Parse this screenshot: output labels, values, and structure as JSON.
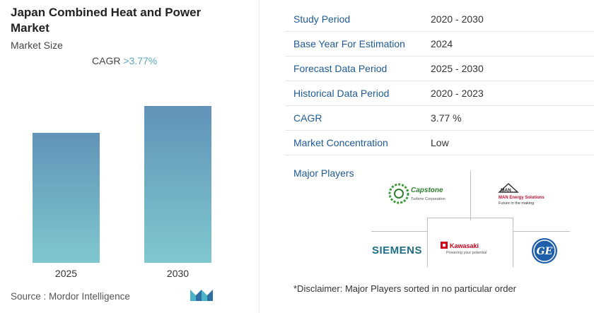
{
  "report": {
    "title": "Japan Combined Heat and Power Market",
    "subtitle": "Market Size",
    "cagr_label": "CAGR",
    "cagr_value": ">3.77%",
    "source": "Source :  Mordor Intelligence"
  },
  "chart_data": {
    "type": "bar",
    "categories": [
      "2025",
      "2030"
    ],
    "series": [
      {
        "values": [
          184,
          222
        ]
      }
    ],
    "title": "",
    "xlabel": "",
    "ylabel": "",
    "note": "No y-axis values shown; bar heights are relative (2025 bar ~83% of 2030 bar)."
  },
  "info_table": [
    {
      "label": "Study Period",
      "value": "2020 - 2030"
    },
    {
      "label": "Base Year For Estimation",
      "value": "2024"
    },
    {
      "label": "Forecast Data Period",
      "value": "2025 - 2030"
    },
    {
      "label": "Historical Data Period",
      "value": "2020 - 2023"
    },
    {
      "label": "CAGR",
      "value": "3.77 %"
    },
    {
      "label": "Market Concentration",
      "value": "Low"
    }
  ],
  "players": {
    "label": "Major Players",
    "logos": [
      {
        "name": "Capstone",
        "tagline": "Turbine Corporation"
      },
      {
        "name": "MAN Energy Solutions",
        "tagline": "Future in the making",
        "mark": "MAN"
      },
      {
        "name": "SIEMENS"
      },
      {
        "name": "Kawasaki",
        "tagline": "Powering your potential"
      },
      {
        "name": "GE",
        "mark": "GE"
      }
    ],
    "disclaimer": "*Disclaimer: Major Players sorted in no particular order"
  },
  "colors": {
    "bar_top": "#6193b8",
    "bar_bottom": "#7fc8cf",
    "label_blue": "#1e5a96",
    "cagr_accent": "#5aa7c6"
  }
}
